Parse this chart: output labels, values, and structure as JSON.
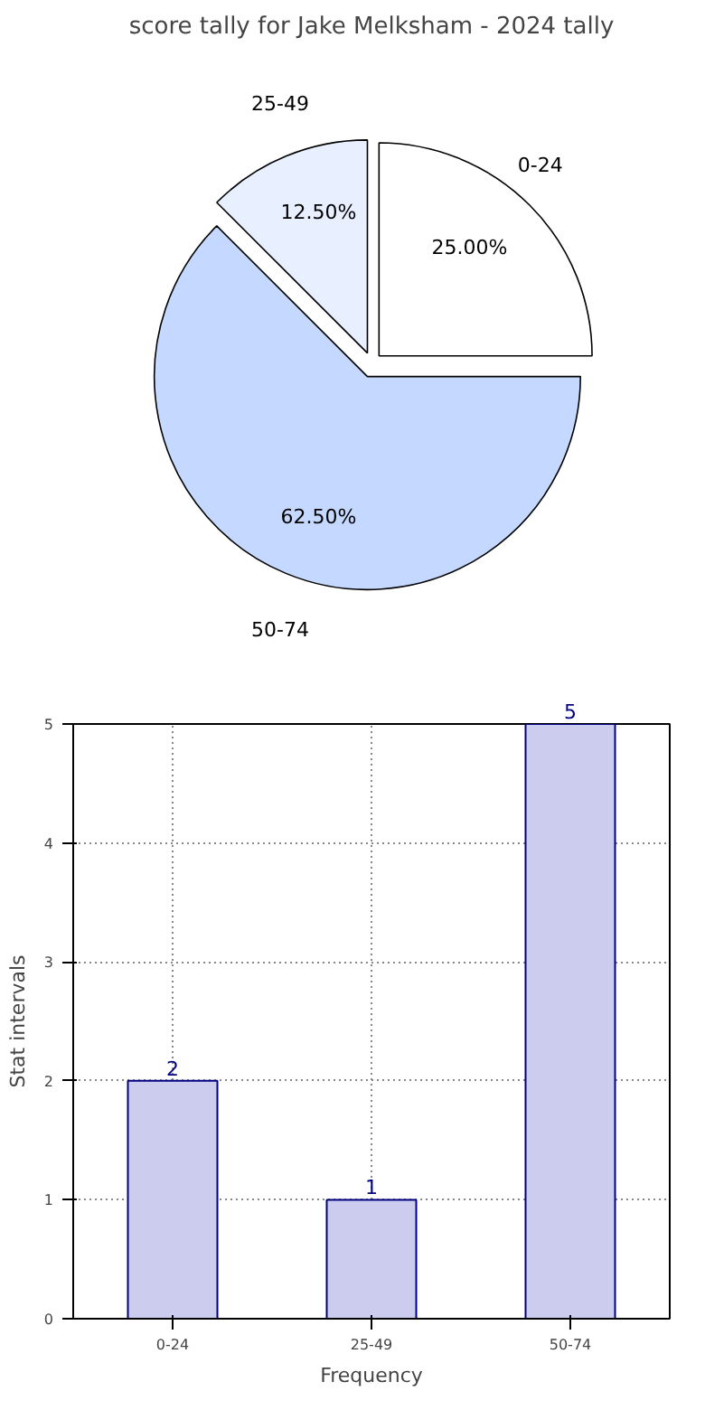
{
  "chart_data": [
    {
      "type": "pie",
      "title": "score tally for Jake Melksham - 2024 tally",
      "categories": [
        "0-24",
        "25-49",
        "50-74"
      ],
      "values": [
        25,
        12.5,
        62.5
      ],
      "colors": [
        "#ffffff",
        "#e8efff",
        "#c5d8ff"
      ],
      "value_labels": [
        "25.00%",
        "12.50%",
        "62.50%"
      ]
    },
    {
      "type": "bar",
      "categories": [
        "0-24",
        "25-49",
        "50-74"
      ],
      "values": [
        2,
        1,
        5
      ],
      "color": "#ccccee",
      "xlabel": "Frequency",
      "ylabel": "Stat intervals",
      "ylim": [
        0,
        5
      ],
      "yticks": [
        0,
        1,
        2,
        3,
        4,
        5
      ],
      "grid": true,
      "data_labels": true
    }
  ]
}
